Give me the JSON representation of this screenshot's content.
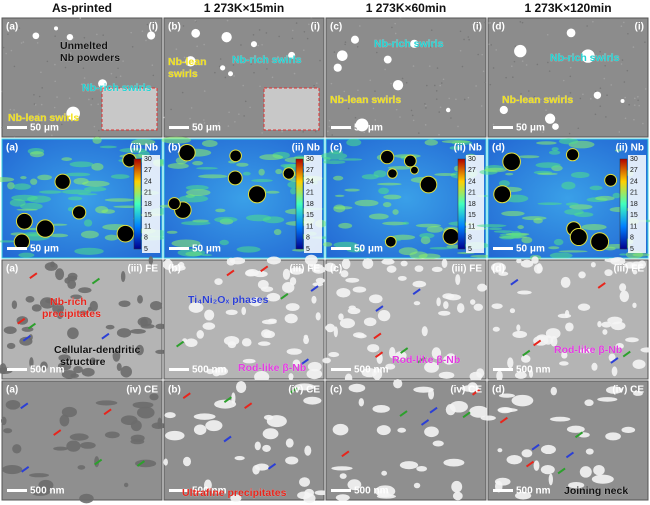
{
  "columns": [
    "As-printed",
    "1 273K×15min",
    "1 273K×60min",
    "1 273K×120min"
  ],
  "colorbar": {
    "ticks": [
      30,
      27,
      24,
      21,
      18,
      15,
      11,
      8,
      5
    ]
  },
  "panels": [
    [
      {
        "letter": "(a)",
        "tag": "(i)",
        "scale": "50 μm",
        "notes": [
          {
            "text": "Unmelted",
            "color": "#111111"
          },
          {
            "text": "Nb powders",
            "color": "#111111"
          },
          {
            "text": "Nb-rich swirls",
            "color": "#22d3d3"
          },
          {
            "text": "Nb-lean swirls",
            "color": "#f2e21c"
          }
        ]
      },
      {
        "letter": "(b)",
        "tag": "(i)",
        "scale": "50 μm",
        "notes": [
          {
            "text": "Nb-lean",
            "color": "#f2e21c"
          },
          {
            "text": "swirls",
            "color": "#f2e21c"
          },
          {
            "text": "Nb-rich swirls",
            "color": "#22d3d3"
          }
        ]
      },
      {
        "letter": "(c)",
        "tag": "(i)",
        "scale": "50 μm",
        "notes": [
          {
            "text": "Nb-rich swirls",
            "color": "#22d3d3"
          },
          {
            "text": "Nb-lean swirls",
            "color": "#f2e21c"
          }
        ]
      },
      {
        "letter": "(d)",
        "tag": "(i)",
        "scale": "50 μm",
        "notes": [
          {
            "text": "Nb-rich swirls",
            "color": "#22d3d3"
          },
          {
            "text": "Nb-lean swirls",
            "color": "#f2e21c"
          }
        ]
      }
    ],
    [
      {
        "letter": "(a)",
        "tag": "(ii) Nb",
        "scale": "50 μm",
        "notes": []
      },
      {
        "letter": "(b)",
        "tag": "(ii) Nb",
        "scale": "50 μm",
        "notes": []
      },
      {
        "letter": "(c)",
        "tag": "(ii) Nb",
        "scale": "50 μm",
        "notes": []
      },
      {
        "letter": "(d)",
        "tag": "(ii) Nb",
        "scale": "50 μm",
        "notes": []
      }
    ],
    [
      {
        "letter": "(a)",
        "tag": "(iii) FE",
        "scale": "500 nm",
        "notes": [
          {
            "text": "Nb-rich",
            "color": "#e8251c"
          },
          {
            "text": "precipitates",
            "color": "#e8251c"
          },
          {
            "text": "Cellular-dendritic",
            "color": "#111111"
          },
          {
            "text": "structure",
            "color": "#111111"
          }
        ]
      },
      {
        "letter": "(b)",
        "tag": "(iii) FE",
        "scale": "500 nm",
        "notes": [
          {
            "text": "Ti₄Ni₂Oₓ phases",
            "color": "#2b3fd6"
          },
          {
            "text": "Rod-like β-Nb",
            "color": "#e23ee0"
          }
        ]
      },
      {
        "letter": "(c)",
        "tag": "(iii) FE",
        "scale": "500 nm",
        "notes": [
          {
            "text": "Rod-like β-Nb",
            "color": "#e23ee0"
          }
        ]
      },
      {
        "letter": "(d)",
        "tag": "(iii) FE",
        "scale": "500 nm",
        "notes": [
          {
            "text": "Rod-like β-Nb",
            "color": "#e23ee0"
          }
        ]
      }
    ],
    [
      {
        "letter": "(a)",
        "tag": "(iv) CE",
        "scale": "500 nm",
        "notes": []
      },
      {
        "letter": "(b)",
        "tag": "(iv) CE",
        "scale": "500 nm",
        "notes": [
          {
            "text": "Ultrafine precipitates",
            "color": "#e8251c"
          }
        ]
      },
      {
        "letter": "(c)",
        "tag": "(iv) CE",
        "scale": "500 nm",
        "notes": []
      },
      {
        "letter": "(d)",
        "tag": "(iv) CE",
        "scale": "500 nm",
        "notes": [
          {
            "text": "Joining neck",
            "color": "#111111"
          }
        ]
      }
    ]
  ]
}
